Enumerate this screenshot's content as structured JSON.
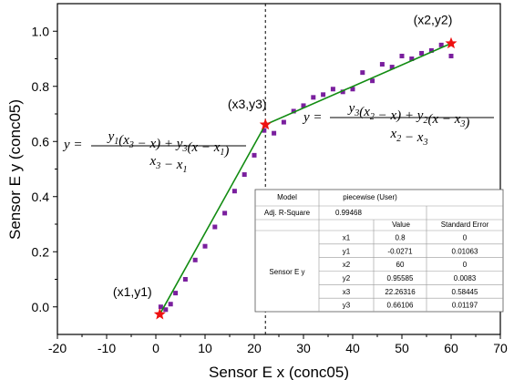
{
  "chart_data": {
    "type": "scatter",
    "xlabel": "Sensor E x (conc05)",
    "ylabel": "Sensor E y (conc05)",
    "xlim": [
      -20,
      70
    ],
    "ylim": [
      -0.1,
      1.1
    ],
    "xticks": [
      -20,
      -10,
      0,
      10,
      20,
      30,
      40,
      50,
      60,
      70
    ],
    "xtick_labels": [
      "-20",
      "-10",
      "0",
      "10",
      "20",
      "30",
      "40",
      "50",
      "60",
      "70"
    ],
    "yticks": [
      0.0,
      0.2,
      0.4,
      0.6,
      0.8,
      1.0
    ],
    "ytick_labels": [
      "0.0",
      "0.2",
      "0.4",
      "0.6",
      "0.8",
      "1.0"
    ],
    "grid": false,
    "series": [
      {
        "marker": "square",
        "color": "#7a1f9e",
        "x": [
          1,
          2,
          3,
          4,
          6,
          8,
          10,
          12,
          14,
          16,
          18,
          20,
          22,
          24,
          26,
          28,
          30,
          32,
          34,
          36,
          38,
          40,
          42,
          44,
          46,
          48,
          50,
          52,
          54,
          56,
          58,
          60
        ],
        "y": [
          0.0,
          -0.01,
          0.01,
          0.05,
          0.1,
          0.17,
          0.22,
          0.29,
          0.34,
          0.42,
          0.48,
          0.55,
          0.64,
          0.63,
          0.67,
          0.71,
          0.73,
          0.76,
          0.77,
          0.79,
          0.78,
          0.79,
          0.85,
          0.82,
          0.88,
          0.87,
          0.91,
          0.9,
          0.92,
          0.93,
          0.95,
          0.91
        ]
      },
      {
        "type": "line",
        "color": "#128c12",
        "x": [
          0.8,
          22.26316,
          60
        ],
        "y": [
          -0.0271,
          0.66106,
          0.95585
        ]
      }
    ],
    "breakpoints": [
      {
        "label": "(x1,y1)",
        "x": 0.8,
        "y": -0.0271
      },
      {
        "label": "(x3,y3)",
        "x": 22.26316,
        "y": 0.66106
      },
      {
        "label": "(x2,y2)",
        "x": 60,
        "y": 0.95585
      }
    ],
    "star_color": "#ee1111",
    "vline_x": 22.26316,
    "formula_left": {
      "lhs": "y",
      "numerator": [
        {
          "t": "y",
          "s": "1"
        },
        {
          "t": "(x"
        },
        {
          "t": "",
          "s": "3"
        },
        {
          "t": " − x) + y"
        },
        {
          "t": "",
          "s": "3"
        },
        {
          "t": "(x − x"
        },
        {
          "t": "",
          "s": "1"
        },
        {
          "t": ")"
        }
      ],
      "denominator": [
        {
          "t": "x",
          "s": "3"
        },
        {
          "t": " − x"
        },
        {
          "t": "",
          "s": "1"
        }
      ]
    },
    "formula_right": {
      "lhs": "y",
      "numerator": [
        {
          "t": "y",
          "s": "3"
        },
        {
          "t": "(x"
        },
        {
          "t": "",
          "s": "2"
        },
        {
          "t": " − x) + y"
        },
        {
          "t": "",
          "s": "2"
        },
        {
          "t": "(x − x"
        },
        {
          "t": "",
          "s": "3"
        },
        {
          "t": ")"
        }
      ],
      "denominator": [
        {
          "t": "x",
          "s": "2"
        },
        {
          "t": " − x"
        },
        {
          "t": "",
          "s": "3"
        }
      ]
    },
    "fit_table": {
      "model_label": "Model",
      "model_value": "piecewise (User)",
      "adjr_label": "Adj. R-Square",
      "adjr_value": "0.99468",
      "value_header": "Value",
      "error_header": "Standard Error",
      "group_label": "Sensor E y",
      "rows": [
        {
          "param": "x1",
          "value": "0.8",
          "error": "0"
        },
        {
          "param": "y1",
          "value": "-0.0271",
          "error": "0.01063"
        },
        {
          "param": "x2",
          "value": "60",
          "error": "0"
        },
        {
          "param": "y2",
          "value": "0.95585",
          "error": "0.0083"
        },
        {
          "param": "x3",
          "value": "22.26316",
          "error": "0.58445"
        },
        {
          "param": "y3",
          "value": "0.66106",
          "error": "0.01197"
        }
      ]
    }
  }
}
